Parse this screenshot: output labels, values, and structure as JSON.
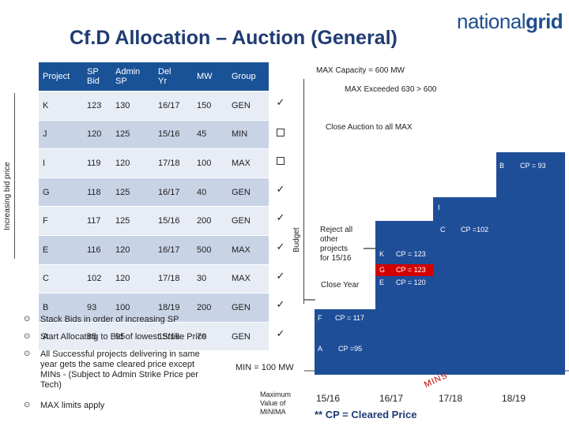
{
  "header": {
    "title": "Cf.D Allocation – Auction (General)",
    "logo_light": "national",
    "logo_bold": "grid"
  },
  "table": {
    "columns": [
      "Project",
      "SP Bid",
      "Admin SP",
      "Del Yr",
      "MW",
      "Group"
    ],
    "columns_line1": [
      "Project",
      "SP",
      "Admin",
      "Del",
      "MW",
      "Group"
    ],
    "columns_line2": [
      "",
      "Bid",
      "SP",
      "Yr",
      "",
      ""
    ],
    "rows": [
      [
        "K",
        "123",
        "130",
        "16/17",
        "150",
        "GEN"
      ],
      [
        "J",
        "120",
        "125",
        "15/16",
        "45",
        "MIN"
      ],
      [
        "I",
        "119",
        "120",
        "17/18",
        "100",
        "MAX"
      ],
      [
        "G",
        "118",
        "125",
        "16/17",
        "40",
        "GEN"
      ],
      [
        "F",
        "117",
        "125",
        "15/16",
        "200",
        "GEN"
      ],
      [
        "E",
        "116",
        "120",
        "16/17",
        "500",
        "MAX"
      ],
      [
        "C",
        "102",
        "120",
        "17/18",
        "30",
        "MAX"
      ],
      [
        "B",
        "93",
        "100",
        "18/19",
        "200",
        "GEN"
      ],
      [
        "A",
        "85",
        "95",
        "15/16",
        "70",
        "GEN"
      ]
    ],
    "status_marks": [
      "check",
      "box",
      "box",
      "check",
      "check",
      "check",
      "check",
      "check",
      "check"
    ],
    "check_glyph": "✓"
  },
  "side_labels": {
    "increasing": "Increasing bid price",
    "budget": "Budget"
  },
  "notes": {
    "max_capacity": "MAX Capacity = 600 MW",
    "max_exceeded": "MAX Exceeded 630 > 600",
    "close_auction": "Close Auction to all MAX",
    "reject_all": "Reject all\nother\nprojects\nfor 15/16",
    "close_year": "Close Year",
    "min_line": "MIN = 100 MW",
    "maximum_value": "Maximum\nValue of\nMINIMA",
    "cleared_price": "** CP = Cleared Price",
    "minis": "MINS"
  },
  "bars": [
    {
      "project": "B",
      "cp": "CP = 93"
    },
    {
      "project": "I",
      "cp": ""
    },
    {
      "project": "C",
      "cp": "CP =102"
    },
    {
      "project": "K",
      "cp": "CP = 123"
    },
    {
      "project": "G",
      "cp": "CP = 123"
    },
    {
      "project": "E",
      "cp": "CP = 120"
    },
    {
      "project": "F",
      "cp": "CP = 117"
    },
    {
      "project": "A",
      "cp": "CP =95"
    }
  ],
  "years": [
    "15/16",
    "16/17",
    "17/18",
    "18/19"
  ],
  "bullets": [
    "Stack Bids in order of increasing SP",
    "Start Allocating to Bid of lowest Strike Price",
    "All Successful projects delivering in same\nyear gets the same cleared price except\nMINs - (Subject to Admin Strike Price per\nTech)",
    "MAX limits apply"
  ],
  "bullet_glyph": "⊙",
  "colors": {
    "title": "#1f3b73",
    "header_bg": "#1a5297",
    "bar": "#1f4e99",
    "accent_red": "#c00000"
  }
}
